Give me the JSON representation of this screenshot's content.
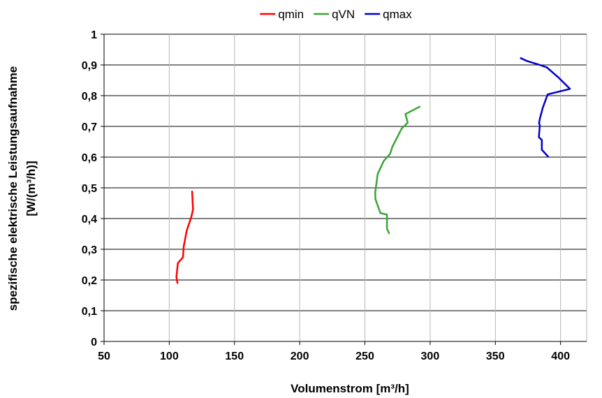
{
  "chart_data": {
    "type": "line",
    "xlabel": "Volumenstrom [m³/h]",
    "ylabel_lines": [
      "spezifische elektrische Leistungsaufnahme",
      "[W/(m³/h)]"
    ],
    "xlim": [
      50,
      420
    ],
    "ylim": [
      0,
      1
    ],
    "x_ticks": [
      50,
      100,
      150,
      200,
      250,
      300,
      350,
      400
    ],
    "x_tick_labels": [
      "50",
      "100",
      "150",
      "200",
      "250",
      "300",
      "350",
      "400"
    ],
    "y_ticks": [
      0,
      0.1,
      0.2,
      0.3,
      0.4,
      0.5,
      0.6,
      0.7,
      0.8,
      0.9,
      1
    ],
    "y_tick_labels": [
      "0",
      "0,1",
      "0,2",
      "0,3",
      "0,4",
      "0,5",
      "0,6",
      "0,7",
      "0,8",
      "0,9",
      "1"
    ],
    "grid": true,
    "legend_position": "top",
    "series": [
      {
        "name": "qmin",
        "color": "#ff0000",
        "points": [
          [
            106.3,
            0.19
          ],
          [
            105.5,
            0.21
          ],
          [
            106.6,
            0.255
          ],
          [
            110.5,
            0.274
          ],
          [
            111.1,
            0.31
          ],
          [
            113.4,
            0.361
          ],
          [
            116.8,
            0.404
          ],
          [
            118.2,
            0.429
          ],
          [
            117.5,
            0.488
          ]
        ]
      },
      {
        "name": "qVN",
        "color": "#3aa536",
        "points": [
          [
            268.5,
            0.352
          ],
          [
            266.9,
            0.367
          ],
          [
            266.9,
            0.413
          ],
          [
            261.9,
            0.418
          ],
          [
            258.1,
            0.463
          ],
          [
            257.9,
            0.485
          ],
          [
            259.8,
            0.545
          ],
          [
            264.4,
            0.587
          ],
          [
            269.3,
            0.611
          ],
          [
            271.1,
            0.634
          ],
          [
            278.2,
            0.693
          ],
          [
            282.8,
            0.712
          ],
          [
            281.1,
            0.74
          ],
          [
            292.0,
            0.764
          ]
        ]
      },
      {
        "name": "qmax",
        "color": "#0000cc",
        "points": [
          [
            390.4,
            0.602
          ],
          [
            385.6,
            0.624
          ],
          [
            385.7,
            0.656
          ],
          [
            383.4,
            0.665
          ],
          [
            384.1,
            0.704
          ],
          [
            383.5,
            0.709
          ],
          [
            384.1,
            0.725
          ],
          [
            386.5,
            0.762
          ],
          [
            390.1,
            0.804
          ],
          [
            407.2,
            0.822
          ],
          [
            398.7,
            0.858
          ],
          [
            394.9,
            0.872
          ],
          [
            389.5,
            0.892
          ],
          [
            383.4,
            0.901
          ],
          [
            374.2,
            0.913
          ],
          [
            369.5,
            0.922
          ]
        ]
      }
    ]
  }
}
